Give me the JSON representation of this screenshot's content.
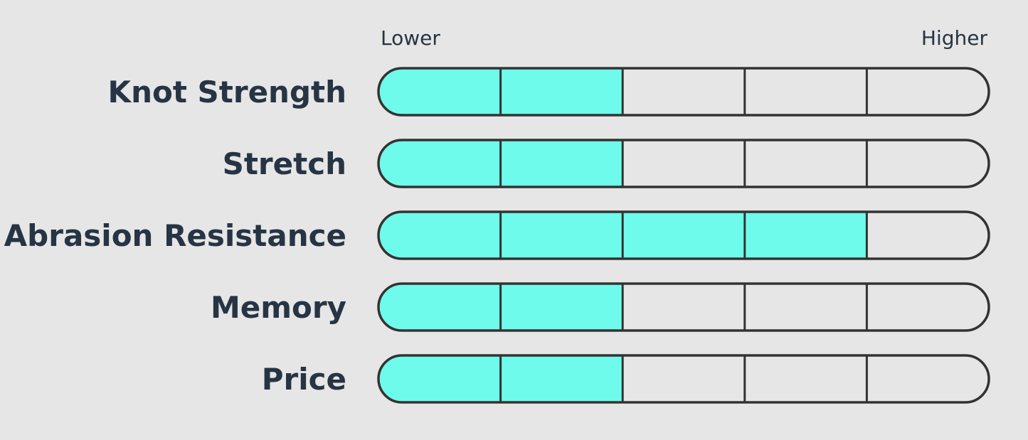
{
  "chart_data": {
    "type": "bar",
    "scale": {
      "min_label": "Lower",
      "max_label": "Higher",
      "segments": 5
    },
    "categories": [
      "Knot Strength",
      "Stretch",
      "Abrasion Resistance",
      "Memory",
      "Price"
    ],
    "values": [
      2,
      2,
      4,
      2,
      2
    ],
    "colors": {
      "fill": "#6efbeb",
      "empty": "#e6e6e6",
      "outline": "#333333",
      "text": "#263444",
      "background": "#e6e6e6"
    }
  }
}
